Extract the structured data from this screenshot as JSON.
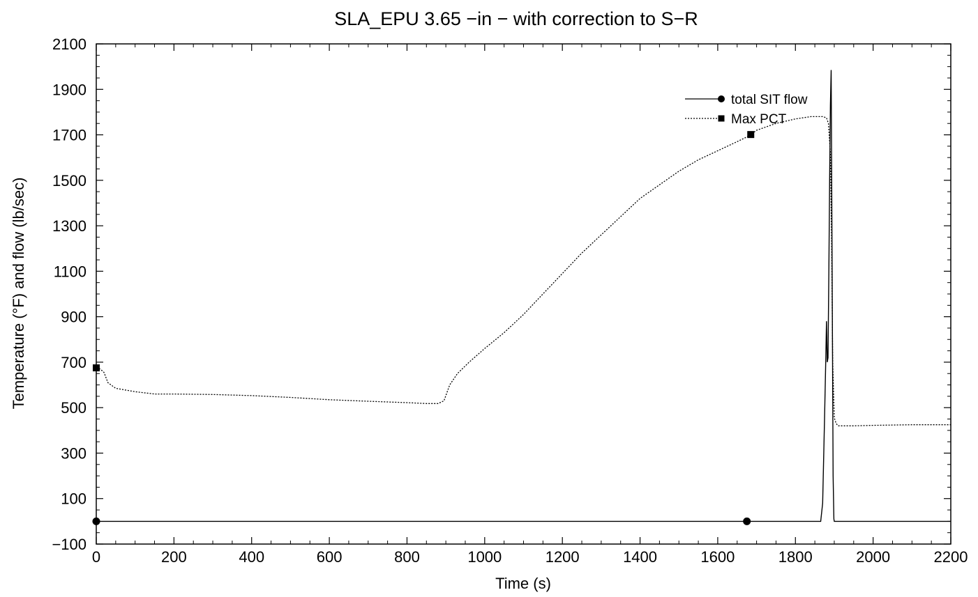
{
  "chart_data": {
    "type": "line",
    "title": "SLA_EPU 3.65 −in − with correction to S−R",
    "xlabel": "Time (s)",
    "ylabel": "Temperature (°F) and flow (lb/sec)",
    "xlim": [
      0,
      2200
    ],
    "ylim": [
      -100,
      2100
    ],
    "xticks": [
      "0",
      "200",
      "400",
      "600",
      "800",
      "1000",
      "1200",
      "1400",
      "1600",
      "1800",
      "2000",
      "2200"
    ],
    "yticks": [
      "−100",
      "100",
      "300",
      "500",
      "700",
      "900",
      "1100",
      "1300",
      "1500",
      "1700",
      "1900",
      "2100"
    ],
    "grid": false,
    "legend_position": "top-right",
    "series": [
      {
        "name": "total SIT flow",
        "style": "solid",
        "marker": "circle",
        "color": "#000000",
        "x": [
          0,
          1865,
          1870,
          1875,
          1878,
          1880,
          1882,
          1884,
          1886,
          1888,
          1890,
          1892,
          1893,
          1895,
          1897,
          1899,
          1900,
          2200
        ],
        "y": [
          0,
          0,
          80,
          450,
          700,
          880,
          700,
          720,
          1100,
          1500,
          1830,
          1985,
          1600,
          900,
          200,
          10,
          0,
          0
        ],
        "marker_x": [
          0,
          1675
        ]
      },
      {
        "name": "Max PCT",
        "style": "dotted",
        "marker": "square",
        "color": "#000000",
        "x": [
          0,
          10,
          20,
          30,
          50,
          100,
          150,
          200,
          300,
          400,
          500,
          600,
          700,
          800,
          850,
          880,
          895,
          910,
          930,
          960,
          1000,
          1050,
          1100,
          1150,
          1200,
          1250,
          1300,
          1350,
          1400,
          1450,
          1500,
          1550,
          1600,
          1650,
          1680,
          1700,
          1750,
          1800,
          1840,
          1870,
          1880,
          1885,
          1890,
          1893,
          1896,
          1900,
          1903,
          1905,
          1910,
          1950,
          2000,
          2100,
          2200
        ],
        "y": [
          675,
          670,
          655,
          610,
          585,
          570,
          560,
          560,
          558,
          553,
          545,
          535,
          528,
          522,
          518,
          518,
          530,
          600,
          650,
          700,
          760,
          830,
          910,
          1000,
          1090,
          1180,
          1260,
          1340,
          1420,
          1480,
          1540,
          1590,
          1630,
          1670,
          1695,
          1720,
          1750,
          1770,
          1780,
          1780,
          1775,
          1750,
          1620,
          1250,
          700,
          455,
          440,
          430,
          420,
          420,
          422,
          425,
          425
        ],
        "marker_x": [
          0,
          1685
        ]
      }
    ]
  }
}
